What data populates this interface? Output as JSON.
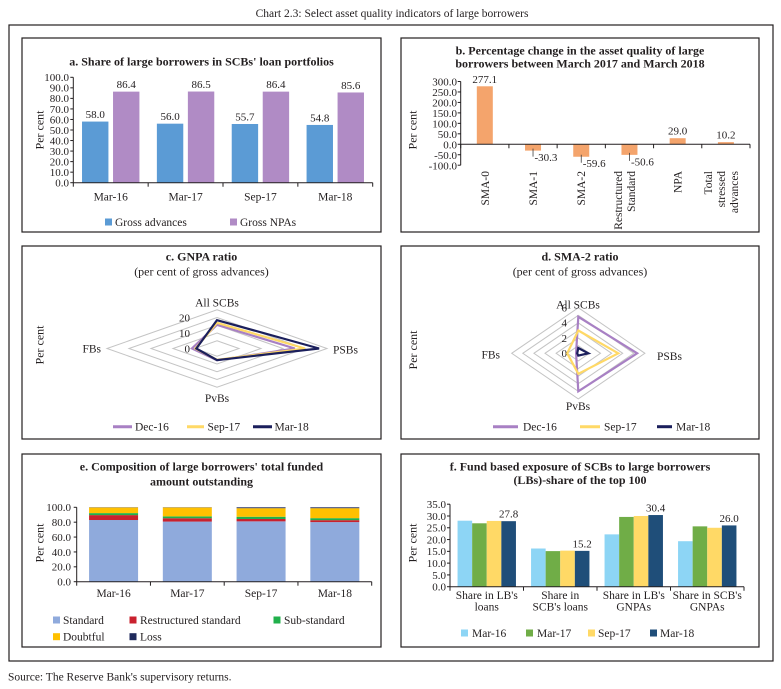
{
  "page": {
    "title": "Chart 2.3: Select asset quality indicators of large borrowers",
    "source": "Source: The Reserve Bank's supervisory returns."
  },
  "chart_data": [
    {
      "panel": "a",
      "type": "bar",
      "title_lines": [
        "a. Share of large borrowers in SCBs' loan portfolios"
      ],
      "xlabel": "",
      "ylabel": "Per cent",
      "ylim": [
        0,
        100
      ],
      "yticks": [
        "0.0",
        "10.0",
        "20.0",
        "30.0",
        "40.0",
        "50.0",
        "60.0",
        "70.0",
        "80.0",
        "90.0",
        "100.0"
      ],
      "grid": false,
      "legend": "bottom",
      "categories": [
        "Mar-16",
        "Mar-17",
        "Sep-17",
        "Mar-18"
      ],
      "series": [
        {
          "name": "Gross advances",
          "color": "#5B9BD5",
          "values": [
            58.0,
            56.0,
            55.7,
            54.8
          ],
          "labels": [
            "58.0",
            "56.0",
            "55.7",
            "54.8"
          ]
        },
        {
          "name": "Gross NPAs",
          "color": "#B08BC5",
          "values": [
            86.4,
            86.5,
            86.4,
            85.6
          ],
          "labels": [
            "86.4",
            "86.5",
            "86.4",
            "85.6"
          ]
        }
      ]
    },
    {
      "panel": "b",
      "type": "bar",
      "title_lines": [
        "b. Percentage change in the asset quality of large",
        "borrowers between March 2017 and March 2018"
      ],
      "xlabel": "",
      "ylabel": "Per cent",
      "ylim": [
        -100,
        300
      ],
      "yticks": [
        "-100.0",
        "-50.0",
        "0.0",
        "50.0",
        "100.0",
        "150.0",
        "200.0",
        "250.0",
        "300.0"
      ],
      "grid": false,
      "legend": "none",
      "categories": [
        "SMA-0",
        "SMA-1",
        "SMA-2",
        "Restructured Standard",
        "NPA",
        "Total stressed advances"
      ],
      "category_label_lines": [
        [
          "SMA-0"
        ],
        [
          "SMA-1"
        ],
        [
          "SMA-2"
        ],
        [
          "Restructured",
          "Standard"
        ],
        [
          "NPA"
        ],
        [
          "Total",
          "stressed",
          "advances"
        ]
      ],
      "series": [
        {
          "color": "#F4A46C",
          "values": [
            277.1,
            -30.3,
            -59.6,
            -50.6,
            29.0,
            10.2
          ],
          "labels": [
            "277.1",
            "-30.3",
            "-59.6",
            "-50.6",
            "29.0",
            "10.2"
          ]
        }
      ]
    },
    {
      "panel": "c",
      "type": "radar",
      "title_lines": [
        "c. GNPA ratio"
      ],
      "subtitle": "(per cent of gross advances)",
      "ylabel": "Per cent",
      "axes": [
        "All SCBs",
        "PSBs",
        "PvBs",
        "FBs"
      ],
      "rlim": [
        0,
        25
      ],
      "rticks": [
        "0",
        "10",
        "20"
      ],
      "rgrid": [
        5,
        10,
        15,
        20,
        25
      ],
      "legend": "bottom",
      "series": [
        {
          "name": "Dec-16",
          "color": "#A880C4",
          "values": [
            15.3,
            17.7,
            7.6,
            5.7
          ]
        },
        {
          "name": "Sep-17",
          "color": "#FFD966",
          "values": [
            16.6,
            20.0,
            7.3,
            4.9
          ]
        },
        {
          "name": "Mar-18",
          "color": "#1B1F5C",
          "values": [
            18.3,
            23.2,
            7.5,
            4.7
          ]
        }
      ]
    },
    {
      "panel": "d",
      "type": "radar",
      "title_lines": [
        "d. SMA-2 ratio"
      ],
      "subtitle": "(per cent of gross advances)",
      "ylabel": "Per cent",
      "axes": [
        "All SCBs",
        "PSBs",
        "PvBs",
        "FBs"
      ],
      "rlim": [
        0,
        6
      ],
      "rticks": [
        "0",
        "2",
        "4",
        "6"
      ],
      "rgrid": [
        1,
        2,
        3,
        4,
        5,
        6
      ],
      "legend": "bottom",
      "series": [
        {
          "name": "Dec-16",
          "color": "#A880C4",
          "values": [
            4.8,
            5.3,
            5.0,
            0.2
          ]
        },
        {
          "name": "Sep-17",
          "color": "#FFD966",
          "values": [
            3.0,
            3.6,
            2.7,
            1.0
          ]
        },
        {
          "name": "Mar-18",
          "color": "#1B1F5C",
          "values": [
            0.7,
            0.9,
            0.3,
            0.1
          ]
        }
      ]
    },
    {
      "panel": "e",
      "type": "bar",
      "stacked": true,
      "title_lines": [
        "e. Composition of large borrowers' total funded",
        "amount outstanding"
      ],
      "xlabel": "",
      "ylabel": "Per cent",
      "ylim": [
        0,
        100
      ],
      "yticks": [
        "0.0",
        "20.0",
        "40.0",
        "60.0",
        "80.0",
        "100.0"
      ],
      "grid": false,
      "legend": "bottom",
      "categories": [
        "Mar-16",
        "Mar-17",
        "Sep-17",
        "Mar-18"
      ],
      "series": [
        {
          "name": "Standard",
          "color": "#8FAADC",
          "values": [
            82.9,
            80.8,
            81.1,
            80.1
          ]
        },
        {
          "name": "Restructured standard",
          "color": "#C9212E",
          "values": [
            6.6,
            4.5,
            3.2,
            2.6
          ]
        },
        {
          "name": "Sub-standard",
          "color": "#21B04B",
          "values": [
            2.7,
            2.5,
            3.0,
            2.7
          ]
        },
        {
          "name": "Doubtful",
          "color": "#FFC000",
          "values": [
            7.5,
            11.9,
            11.5,
            13.4
          ]
        },
        {
          "name": "Loss",
          "color": "#1F2A5C",
          "values": [
            0.3,
            0.3,
            1.2,
            1.2
          ]
        }
      ]
    },
    {
      "panel": "f",
      "type": "bar",
      "title_lines": [
        "f. Fund based exposure of SCBs to large borrowers",
        "(LBs)-share of the top 100"
      ],
      "xlabel": "",
      "ylabel": "Per cent",
      "ylim": [
        0,
        35
      ],
      "yticks": [
        "0.0",
        "5.0",
        "10.0",
        "15.0",
        "20.0",
        "25.0",
        "30.0",
        "35.0"
      ],
      "grid": false,
      "legend": "bottom",
      "categories": [
        "Share in LB's loans",
        "Share in SCB's loans",
        "Share in LB's GNPAs",
        "Share in SCB's GNPAs"
      ],
      "category_label_lines": [
        [
          "Share in LB's",
          "loans"
        ],
        [
          "Share in",
          "SCB's loans"
        ],
        [
          "Share in LB's",
          "GNPAs"
        ],
        [
          "Share in SCB's",
          "GNPAs"
        ]
      ],
      "series": [
        {
          "name": "Mar-16",
          "color": "#8DD5F5",
          "values": [
            28.0,
            16.2,
            22.2,
            19.3
          ]
        },
        {
          "name": "Mar-17",
          "color": "#70AD47",
          "values": [
            26.9,
            15.1,
            29.6,
            25.6
          ]
        },
        {
          "name": "Sep-17",
          "color": "#FFD966",
          "values": [
            27.9,
            15.3,
            30.0,
            25.0
          ]
        },
        {
          "name": "Mar-18",
          "color": "#1F4E79",
          "values": [
            27.8,
            15.2,
            30.4,
            26.0
          ],
          "labels": [
            "27.8",
            "15.2",
            "30.4",
            "26.0"
          ]
        }
      ]
    }
  ]
}
